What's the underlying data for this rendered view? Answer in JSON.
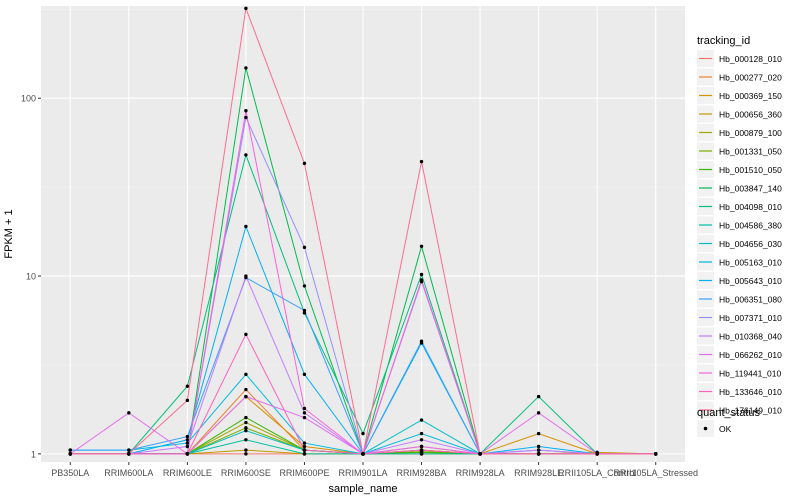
{
  "chart_data": {
    "type": "line",
    "xlabel": "sample_name",
    "ylabel": "FPKM + 1",
    "y_scale": "log10",
    "ylim": [
      0.9,
      330
    ],
    "y_ticks": [
      {
        "value": 1,
        "label": "1"
      },
      {
        "value": 10,
        "label": "10"
      },
      {
        "value": 100,
        "label": "100"
      }
    ],
    "grid": true,
    "legend_position": "right",
    "categories": [
      "PB350LA",
      "RRIM600LA",
      "RRIM600LE",
      "RRIM600SE",
      "RRIM600PE",
      "RRIM901LA",
      "RRIM928BA",
      "RRIM928LA",
      "RRIM928LE",
      "RRII105LA_Control",
      "RRII105LA_Stressed"
    ],
    "series_legend_title": "tracking_id",
    "series": [
      {
        "name": "Hb_000128_010",
        "color": "#F8766D",
        "values": [
          1.0,
          1.0,
          1.0,
          1.0,
          1.0,
          1.0,
          1.0,
          1.0,
          1.0,
          1.0,
          1.0
        ]
      },
      {
        "name": "Hb_000277_020",
        "color": "#EA8331",
        "values": [
          1.0,
          1.0,
          1.0,
          2.3,
          1.05,
          1.0,
          1.05,
          1.0,
          1.0,
          1.0,
          1.0
        ]
      },
      {
        "name": "Hb_000369_150",
        "color": "#D89000",
        "values": [
          1.0,
          1.0,
          1.0,
          2.1,
          1.1,
          1.0,
          1.1,
          1.0,
          1.3,
          1.0,
          1.0
        ]
      },
      {
        "name": "Hb_000656_360",
        "color": "#C09B00",
        "values": [
          1.0,
          1.0,
          1.0,
          1.05,
          1.0,
          1.0,
          1.0,
          1.0,
          1.0,
          1.02,
          1.0
        ]
      },
      {
        "name": "Hb_000879_100",
        "color": "#A3A500",
        "values": [
          1.0,
          1.0,
          1.0,
          1.5,
          1.05,
          1.0,
          1.05,
          1.0,
          1.0,
          1.0,
          1.0
        ]
      },
      {
        "name": "Hb_001331_050",
        "color": "#7CAE00",
        "values": [
          1.0,
          1.0,
          1.0,
          1.4,
          1.05,
          1.0,
          1.03,
          1.0,
          1.0,
          1.0,
          1.0
        ]
      },
      {
        "name": "Hb_001510_050",
        "color": "#39B600",
        "values": [
          1.0,
          1.0,
          1.0,
          1.6,
          1.05,
          1.0,
          1.02,
          1.0,
          1.0,
          1.0,
          1.0
        ]
      },
      {
        "name": "Hb_003847_140",
        "color": "#00BB4E",
        "values": [
          1.0,
          1.0,
          1.0,
          148.0,
          8.8,
          1.0,
          14.7,
          1.0,
          1.0,
          1.0,
          1.0
        ]
      },
      {
        "name": "Hb_004098_010",
        "color": "#00BF7D",
        "values": [
          1.0,
          1.0,
          2.4,
          48.0,
          6.2,
          1.3,
          10.2,
          1.0,
          2.1,
          1.0,
          1.0
        ]
      },
      {
        "name": "Hb_004586_380",
        "color": "#00C1A3",
        "values": [
          1.0,
          1.0,
          1.0,
          1.2,
          1.0,
          1.0,
          1.0,
          1.0,
          1.0,
          1.0,
          1.0
        ]
      },
      {
        "name": "Hb_004656_030",
        "color": "#00BFC4",
        "values": [
          1.0,
          1.0,
          1.0,
          1.35,
          1.05,
          1.0,
          1.55,
          1.0,
          1.0,
          1.0,
          1.0
        ]
      },
      {
        "name": "Hb_005163_010",
        "color": "#00BAE0",
        "values": [
          1.05,
          1.05,
          1.15,
          2.8,
          1.15,
          1.0,
          1.3,
          1.0,
          1.0,
          1.0,
          1.0
        ]
      },
      {
        "name": "Hb_005643_010",
        "color": "#00B0F6",
        "values": [
          1.0,
          1.0,
          1.2,
          19.0,
          2.8,
          1.0,
          4.2,
          1.0,
          1.1,
          1.0,
          1.0
        ]
      },
      {
        "name": "Hb_006351_080",
        "color": "#35A2FF",
        "values": [
          1.05,
          1.05,
          1.25,
          9.8,
          6.4,
          1.0,
          4.3,
          1.0,
          1.05,
          1.0,
          1.0
        ]
      },
      {
        "name": "Hb_007371_010",
        "color": "#9590FF",
        "values": [
          1.0,
          1.0,
          1.0,
          78.0,
          14.5,
          1.0,
          9.3,
          1.0,
          1.0,
          1.0,
          1.0
        ]
      },
      {
        "name": "Hb_010368_040",
        "color": "#C77CFF",
        "values": [
          1.0,
          1.0,
          1.1,
          10.0,
          1.7,
          1.0,
          1.2,
          1.0,
          1.05,
          1.0,
          1.0
        ]
      },
      {
        "name": "Hb_066262_010",
        "color": "#E76BF3",
        "values": [
          1.0,
          1.7,
          1.0,
          2.1,
          1.6,
          1.0,
          1.1,
          1.0,
          1.7,
          1.0,
          1.0
        ]
      },
      {
        "name": "Hb_119441_010",
        "color": "#FA62DB",
        "values": [
          1.0,
          1.0,
          1.0,
          85.0,
          1.8,
          1.0,
          9.5,
          1.0,
          1.0,
          1.0,
          1.0
        ]
      },
      {
        "name": "Hb_133646_010",
        "color": "#FF62BC",
        "values": [
          1.0,
          1.0,
          1.0,
          4.7,
          1.05,
          1.0,
          1.05,
          1.0,
          1.0,
          1.0,
          1.0
        ]
      },
      {
        "name": "Hb_176149_010",
        "color": "#FF6C91",
        "values": [
          1.0,
          1.0,
          2.0,
          320.0,
          43.0,
          1.0,
          44.0,
          1.0,
          1.0,
          1.0,
          1.0
        ]
      }
    ],
    "point_legend_title": "quant_status",
    "point_legend_items": [
      "OK"
    ],
    "colors": {
      "panel_background": "#EBEBEB",
      "grid_major": "#FFFFFF",
      "axis_text": "#4D4D4D",
      "point": "#000000"
    }
  }
}
